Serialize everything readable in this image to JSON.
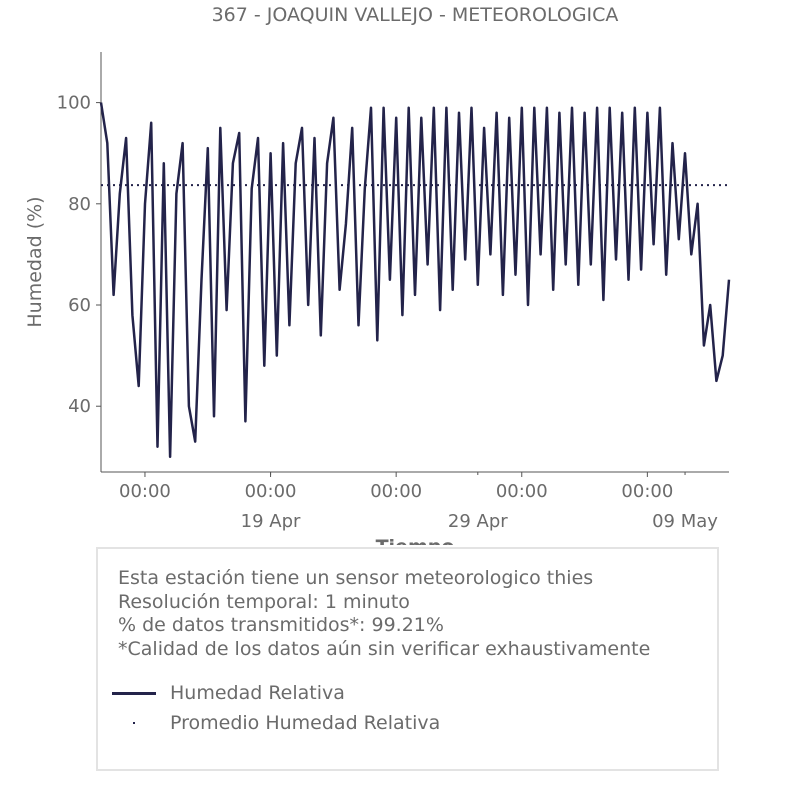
{
  "chart_data": {
    "type": "line",
    "title": "367 - JOAQUIN VALLEJO - METEOROLOGICA",
    "xlabel": "Tiempo",
    "ylabel": "Humedad (%)",
    "ylim": [
      27,
      110
    ],
    "xlim": [
      0,
      100
    ],
    "yticks": [
      40,
      60,
      80,
      100
    ],
    "xticks_major": [
      {
        "pos": 7,
        "label": "00:00"
      },
      {
        "pos": 27,
        "label": "00:00"
      },
      {
        "pos": 47,
        "label": "00:00"
      },
      {
        "pos": 67,
        "label": "00:00"
      },
      {
        "pos": 87,
        "label": "00:00"
      }
    ],
    "xticks_minor": [
      {
        "pos": 27,
        "label": "19 Apr"
      },
      {
        "pos": 60,
        "label": "29 Apr"
      },
      {
        "pos": 93,
        "label": "09 May"
      }
    ],
    "grid": false,
    "series": [
      {
        "name": "Humedad Relativa",
        "color": "#23234a",
        "x": [
          0,
          1,
          2,
          3,
          4,
          5,
          6,
          7,
          8,
          9,
          10,
          11,
          12,
          13,
          14,
          15,
          16,
          17,
          18,
          19,
          20,
          21,
          22,
          23,
          24,
          25,
          26,
          27,
          28,
          29,
          30,
          31,
          32,
          33,
          34,
          35,
          36,
          37,
          38,
          39,
          40,
          41,
          42,
          43,
          44,
          45,
          46,
          47,
          48,
          49,
          50,
          51,
          52,
          53,
          54,
          55,
          56,
          57,
          58,
          59,
          60,
          61,
          62,
          63,
          64,
          65,
          66,
          67,
          68,
          69,
          70,
          71,
          72,
          73,
          74,
          75,
          76,
          77,
          78,
          79,
          80,
          81,
          82,
          83,
          84,
          85,
          86,
          87,
          88,
          89,
          90,
          91,
          92,
          93,
          94,
          95,
          96,
          97,
          98,
          99,
          100
        ],
        "values": [
          100,
          92,
          62,
          82,
          93,
          58,
          44,
          80,
          96,
          32,
          88,
          30,
          82,
          92,
          40,
          33,
          65,
          91,
          38,
          95,
          59,
          88,
          94,
          37,
          83,
          93,
          48,
          90,
          50,
          92,
          56,
          88,
          95,
          60,
          93,
          54,
          88,
          97,
          63,
          76,
          95,
          56,
          83,
          99,
          53,
          99,
          65,
          97,
          58,
          99,
          62,
          97,
          68,
          99,
          59,
          99,
          63,
          98,
          69,
          99,
          64,
          95,
          70,
          98,
          62,
          97,
          66,
          99,
          60,
          99,
          70,
          99,
          63,
          98,
          68,
          99,
          64,
          98,
          68,
          99,
          61,
          99,
          69,
          98,
          65,
          99,
          67,
          98,
          72,
          99,
          66,
          92,
          73,
          90,
          70,
          80,
          52,
          60,
          45,
          50,
          65
        ]
      },
      {
        "name": "Promedio Humedad Relativa",
        "color": "#23234a",
        "style": "dotted",
        "x": [
          0,
          100
        ],
        "values": [
          83.7,
          83.7
        ]
      }
    ]
  },
  "info": {
    "lines": [
      "Esta estación tiene un sensor meteorologico thies",
      "Resolución temporal: 1 minuto",
      "% de datos transmitidos*: 99.21%",
      "*Calidad de los datos aún sin verificar exhaustivamente"
    ]
  },
  "legend": {
    "placement": "bottom",
    "items": [
      {
        "label": "Humedad Relativa",
        "marker": "line",
        "color": "#23234a"
      },
      {
        "label": "Promedio Humedad Relativa",
        "marker": "dot",
        "color": "#23234a"
      }
    ]
  }
}
